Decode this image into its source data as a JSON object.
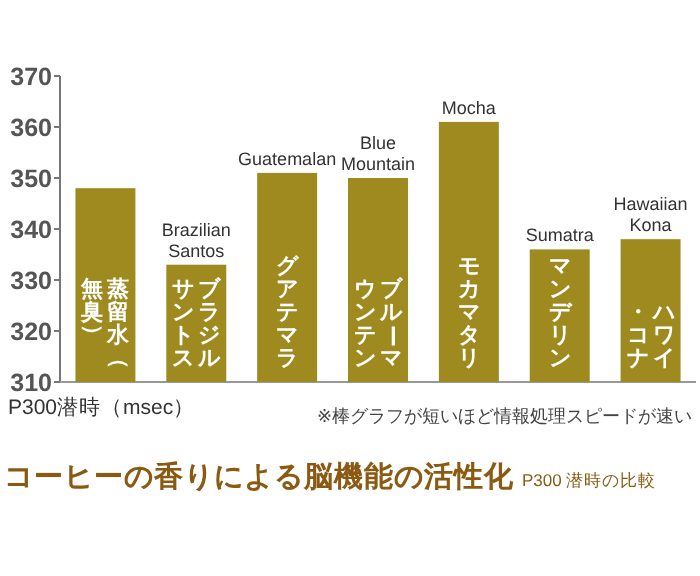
{
  "chart_data": {
    "type": "bar",
    "title": "コーヒーの香りによる脳機能の活性化",
    "subtitle": "P300 潜時の比較",
    "ylabel": "P300潜時（msec）",
    "categories": [
      "蒸留水（無臭）",
      "ブラジルサントス",
      "グアテマラ",
      "ブルーマウンテン",
      "モカマタリ",
      "マンデリン",
      "ハワイ・コナ"
    ],
    "values": [
      348,
      333,
      351,
      350,
      361,
      336,
      338
    ],
    "color": "#9e8a1e",
    "ylim": [
      310,
      370
    ],
    "yticks": [
      310,
      320,
      330,
      340,
      350,
      360,
      370
    ],
    "grid": false,
    "annotations": [
      {
        "text": "Brazilian\nSantos",
        "x": "ブラジルサントス",
        "y": 333
      },
      {
        "text": "Guatemalan",
        "x": "グアテマラ",
        "y": 351
      },
      {
        "text": "Blue\nMountain",
        "x": "ブルーマウンテン",
        "y": 350
      },
      {
        "text": "Mocha",
        "x": "モカマタリ",
        "y": 361
      },
      {
        "text": "Sumatra",
        "x": "マンデリン",
        "y": 336
      },
      {
        "text": "Hawaiian\nKona",
        "x": "ハワイ・コナ",
        "y": 338
      },
      "※棒グラフが短いほど情報処理スピードが速い"
    ]
  }
}
